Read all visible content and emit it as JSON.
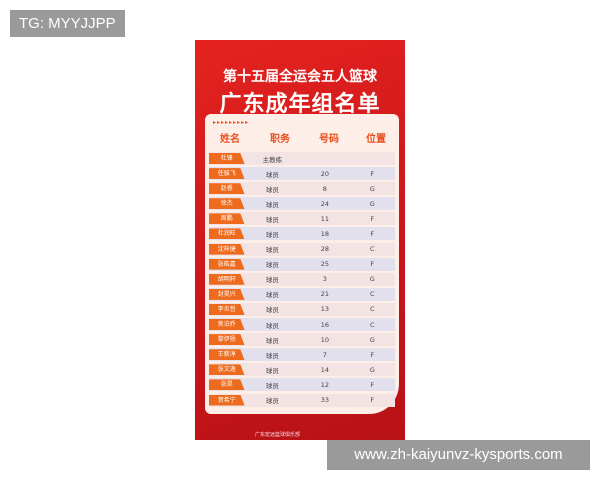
{
  "watermark": "TG: MYYJJPP",
  "url": "www.zh-kaiyunvz-kysports.com",
  "poster": {
    "title1": "第十五届全运会五人篮球",
    "title2": "广东成年组名单",
    "arrows": "▸▸▸▸▸▸▸▸▸",
    "headers": [
      "姓名",
      "职务",
      "号码",
      "位置"
    ],
    "rows": [
      {
        "name": "杜锋",
        "role": "主教练",
        "number": "",
        "pos": ""
      },
      {
        "name": "任骏飞",
        "role": "球员",
        "number": "20",
        "pos": "F"
      },
      {
        "name": "赵睿",
        "role": "球员",
        "number": "8",
        "pos": "G"
      },
      {
        "name": "徐杰",
        "role": "球员",
        "number": "24",
        "pos": "G"
      },
      {
        "name": "周鹏",
        "role": "球员",
        "number": "11",
        "pos": "F"
      },
      {
        "name": "杜润旺",
        "role": "球员",
        "number": "18",
        "pos": "F"
      },
      {
        "name": "沈梓捷",
        "role": "球员",
        "number": "28",
        "pos": "C"
      },
      {
        "name": "张皓嘉",
        "role": "球员",
        "number": "25",
        "pos": "F"
      },
      {
        "name": "胡明轩",
        "role": "球员",
        "number": "3",
        "pos": "G"
      },
      {
        "name": "封昊兴",
        "role": "球员",
        "number": "21",
        "pos": "C"
      },
      {
        "name": "李炎哲",
        "role": "球员",
        "number": "13",
        "pos": "C"
      },
      {
        "name": "焦泊乔",
        "role": "球员",
        "number": "16",
        "pos": "C"
      },
      {
        "name": "黎伊扬",
        "role": "球员",
        "number": "10",
        "pos": "G"
      },
      {
        "name": "王薪淳",
        "role": "球员",
        "number": "7",
        "pos": "F"
      },
      {
        "name": "张文逸",
        "role": "球员",
        "number": "14",
        "pos": "G"
      },
      {
        "name": "张昊",
        "role": "球员",
        "number": "12",
        "pos": "F"
      },
      {
        "name": "贺希宁",
        "role": "球员",
        "number": "33",
        "pos": "F"
      }
    ],
    "footer": "广东宏远篮球俱乐部"
  }
}
